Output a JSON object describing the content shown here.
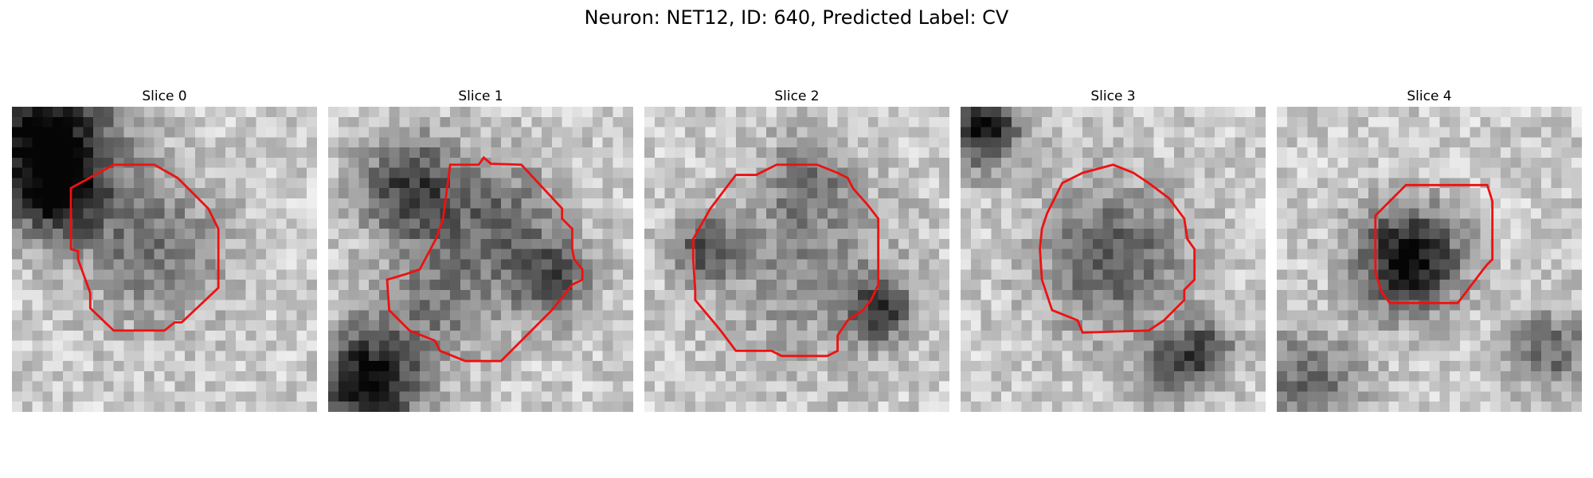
{
  "figure": {
    "title": "Neuron: NET12, ID: 640, Predicted Label: CV",
    "outline_color": "#ee1111"
  },
  "slices": [
    {
      "title": "Slice 0"
    },
    {
      "title": "Slice 1"
    },
    {
      "title": "Slice 2"
    },
    {
      "title": "Slice 3"
    },
    {
      "title": "Slice 4"
    }
  ]
}
